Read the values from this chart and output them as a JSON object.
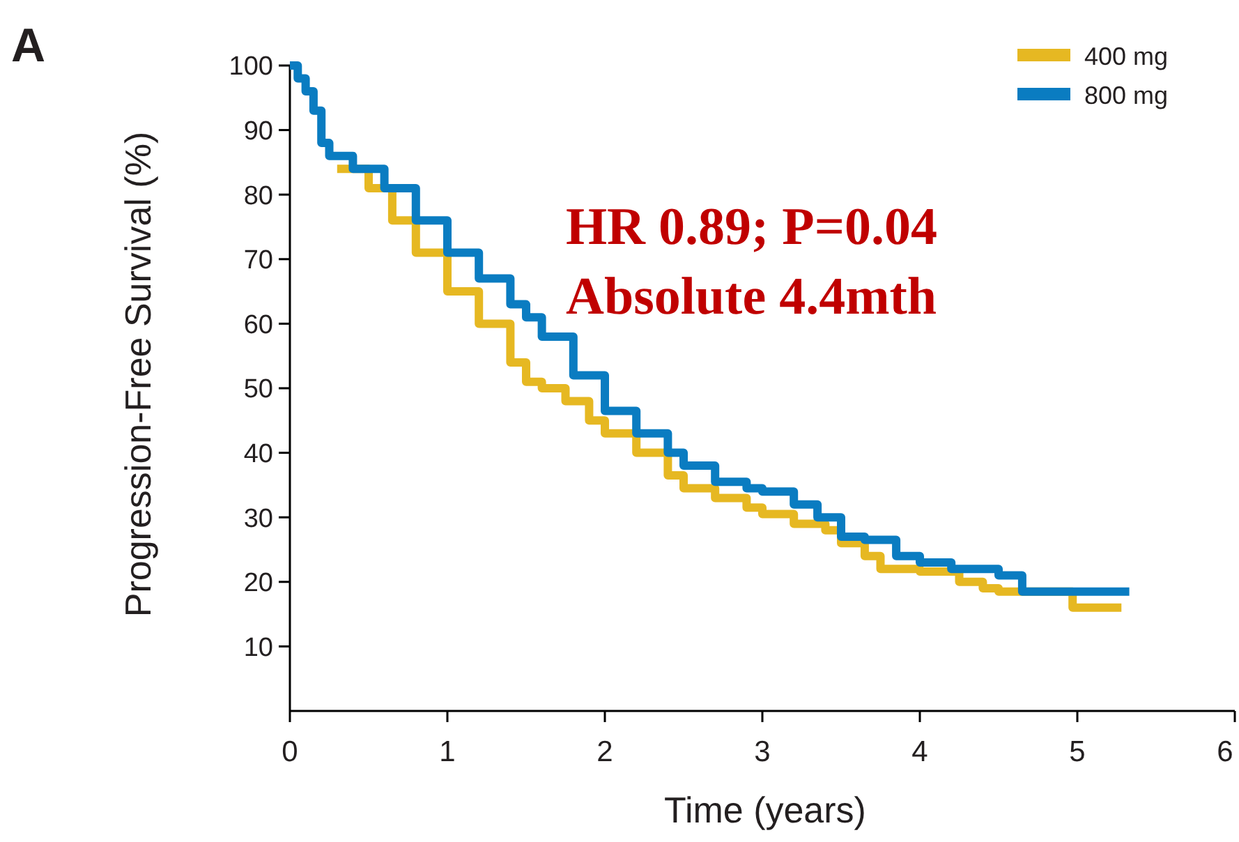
{
  "chart_data": {
    "type": "step",
    "xlabel": "Time (years)",
    "ylabel": "Progression-Free Survival (%)",
    "annotations": [
      "A",
      "HR 0.89; P=0.04",
      "Absolute 4.4mth"
    ],
    "xlim": [
      0,
      6
    ],
    "ylim": [
      0,
      100
    ],
    "xticks": [
      0,
      1,
      2,
      3,
      4,
      5,
      6
    ],
    "yticks": [
      10,
      20,
      30,
      40,
      50,
      60,
      70,
      80,
      90,
      100
    ],
    "grid": false,
    "legend": "top right",
    "line_style": "solid",
    "marker": "none",
    "series": [
      {
        "name": "400 mg",
        "color": "#e6b822",
        "x": [
          0.3,
          0.5,
          0.65,
          0.8,
          1,
          1.2,
          1.4,
          1.5,
          1.6,
          1.75,
          1.9,
          2,
          2.2,
          2.4,
          2.5,
          2.7,
          2.9,
          3,
          3.2,
          3.4,
          3.5,
          3.65,
          3.75,
          4,
          4.25,
          4.4,
          4.5,
          4.97,
          5.28
        ],
        "values": [
          84,
          81,
          76,
          71,
          65,
          60,
          54,
          51,
          50,
          48,
          45,
          43,
          40,
          36.5,
          34.5,
          33,
          31.5,
          30.5,
          29,
          28,
          26,
          24,
          22,
          21.6,
          20,
          19,
          18.5,
          16,
          16
        ]
      },
      {
        "name": "800 mg",
        "color": "#0a7cc1",
        "x": [
          0,
          0.05,
          0.1,
          0.15,
          0.2,
          0.25,
          0.4,
          0.6,
          0.8,
          1,
          1.2,
          1.4,
          1.5,
          1.6,
          1.8,
          2,
          2.2,
          2.4,
          2.5,
          2.7,
          2.9,
          3,
          3.2,
          3.35,
          3.5,
          3.65,
          3.85,
          4,
          4.2,
          4.5,
          4.65,
          5.33
        ],
        "values": [
          100,
          98,
          96,
          93,
          88,
          86,
          84,
          81,
          76,
          71,
          67,
          63,
          61,
          58,
          52,
          46.5,
          43,
          40,
          38,
          35.5,
          34.5,
          34,
          32,
          30,
          27,
          26.5,
          24,
          23,
          22,
          21,
          18.5,
          18.5
        ]
      }
    ]
  }
}
